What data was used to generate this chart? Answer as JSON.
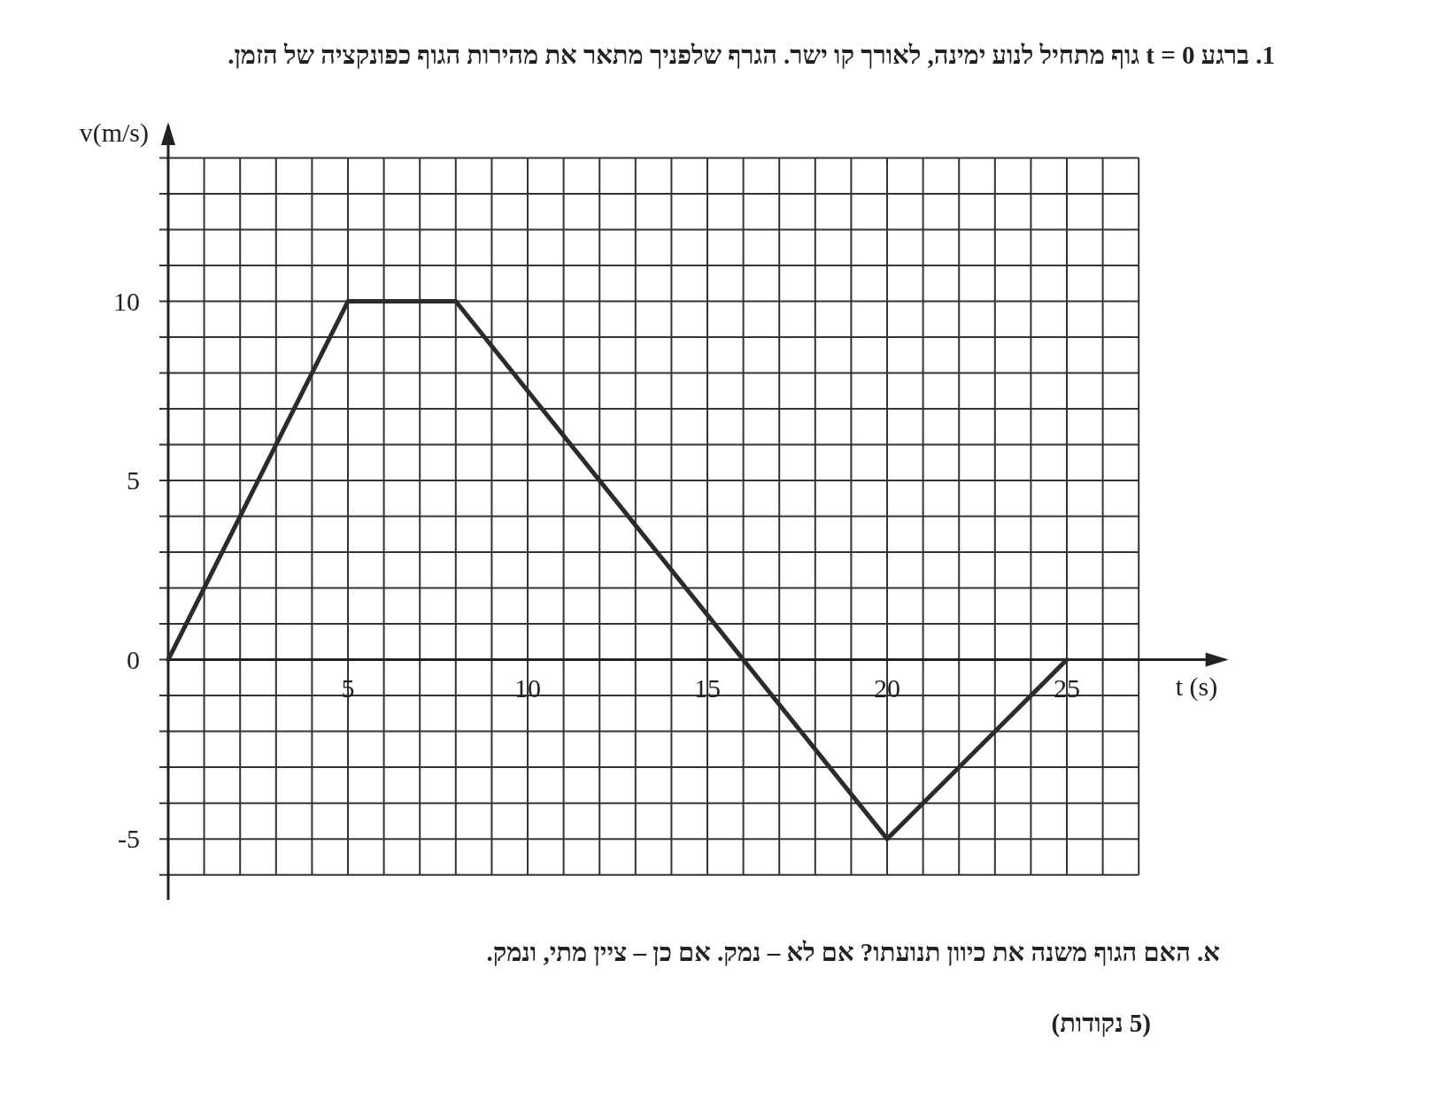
{
  "chart_data": {
    "type": "line",
    "title": "1. ברגע t = 0 גוף מתחיל לנוע ימינה, לאורך קו ישר. הגרף שלפניך מתאר את מהירות הגוף כפונקציה של הזמן.",
    "annotations": [
      "א. האם הגוף משנה את כיוון תנועתו? אם לא – נמק. אם כן – ציין מתי, ונמק.",
      "(5 נקודות)"
    ],
    "xlabel": "t (s)",
    "ylabel": "v(m/s)",
    "x": [
      0,
      5,
      8,
      16,
      20,
      25
    ],
    "series": [
      {
        "color": "#2b2b2b",
        "values": [
          0,
          10,
          10,
          0,
          -5,
          0
        ]
      }
    ],
    "xlim": [
      0,
      29.5
    ],
    "ylim": [
      -6.7,
      15
    ],
    "xticks": [
      {
        "value": 0,
        "label": null
      },
      {
        "value": 1,
        "label": null
      },
      {
        "value": 2,
        "label": null
      },
      {
        "value": 3,
        "label": null
      },
      {
        "value": 4,
        "label": null
      },
      5,
      {
        "value": 6,
        "label": null
      },
      {
        "value": 7,
        "label": null
      },
      {
        "value": 8,
        "label": null
      },
      {
        "value": 9,
        "label": null
      },
      10,
      {
        "value": 11,
        "label": null
      },
      {
        "value": 12,
        "label": null
      },
      {
        "value": 13,
        "label": null
      },
      {
        "value": 14,
        "label": null
      },
      15,
      {
        "value": 16,
        "label": null
      },
      {
        "value": 17,
        "label": null
      },
      {
        "value": 18,
        "label": null
      },
      {
        "value": 19,
        "label": null
      },
      20,
      {
        "value": 21,
        "label": null
      },
      {
        "value": 22,
        "label": null
      },
      {
        "value": 23,
        "label": null
      },
      {
        "value": 24,
        "label": null
      },
      25,
      {
        "value": 26,
        "label": null
      },
      {
        "value": 27,
        "label": null
      }
    ],
    "yticks": [
      {
        "value": -6,
        "label": null
      },
      -5,
      {
        "value": -4,
        "label": null
      },
      {
        "value": -3,
        "label": null
      },
      {
        "value": -2,
        "label": null
      },
      {
        "value": -1,
        "label": null
      },
      0,
      {
        "value": 1,
        "label": null
      },
      {
        "value": 2,
        "label": null
      },
      {
        "value": 3,
        "label": null
      },
      {
        "value": 4,
        "label": null
      },
      5,
      {
        "value": 6,
        "label": null
      },
      {
        "value": 7,
        "label": null
      },
      {
        "value": 8,
        "label": null
      },
      {
        "value": 9,
        "label": null
      },
      10,
      {
        "value": 11,
        "label": null
      },
      {
        "value": 12,
        "label": null
      },
      {
        "value": 13,
        "label": null
      },
      {
        "value": 14,
        "label": null
      }
    ],
    "grid": true,
    "marker": "none",
    "line_style": "solid"
  }
}
